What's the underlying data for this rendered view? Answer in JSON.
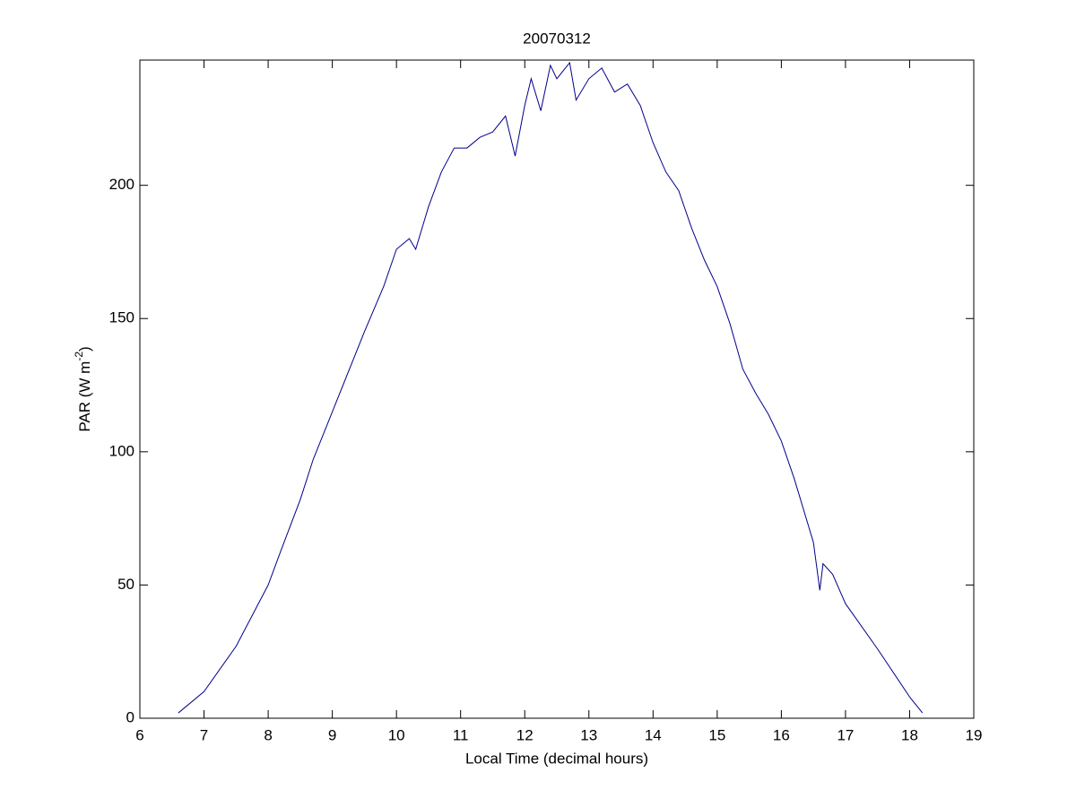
{
  "chart_data": {
    "type": "line",
    "title": "20070312",
    "xlabel": "Local Time (decimal hours)",
    "ylabel": [
      "PAR (W m",
      "-2",
      ")"
    ],
    "x": [
      6.6,
      7.0,
      7.5,
      8.0,
      8.2,
      8.5,
      8.7,
      9.0,
      9.5,
      9.8,
      10.0,
      10.2,
      10.3,
      10.5,
      10.7,
      10.9,
      11.1,
      11.3,
      11.5,
      11.7,
      11.85,
      12.0,
      12.1,
      12.25,
      12.4,
      12.5,
      12.7,
      12.8,
      13.0,
      13.2,
      13.4,
      13.6,
      13.8,
      14.0,
      14.2,
      14.4,
      14.6,
      14.8,
      15.0,
      15.2,
      15.4,
      15.6,
      15.8,
      16.0,
      16.2,
      16.5,
      16.6,
      16.65,
      16.8,
      17.0,
      17.5,
      18.0,
      18.2
    ],
    "series": [
      {
        "color": "#00008b",
        "values": [
          2,
          10,
          27,
          50,
          63,
          82,
          97,
          115,
          145,
          162,
          176,
          180,
          176,
          192,
          205,
          214,
          214,
          218,
          220,
          226,
          211,
          230,
          240,
          228,
          245,
          240,
          246,
          232,
          240,
          244,
          235,
          238,
          230,
          216,
          205,
          198,
          184,
          172,
          162,
          148,
          131,
          122,
          114,
          104,
          90,
          66,
          48,
          58,
          54,
          43,
          26,
          8,
          2
        ]
      }
    ],
    "xlim": [
      6,
      19
    ],
    "xticks": [
      6,
      7,
      8,
      9,
      10,
      11,
      12,
      13,
      14,
      15,
      16,
      17,
      18,
      19
    ],
    "ylim": [
      0,
      247
    ],
    "yticks": [
      0,
      50,
      100,
      150,
      200
    ]
  }
}
